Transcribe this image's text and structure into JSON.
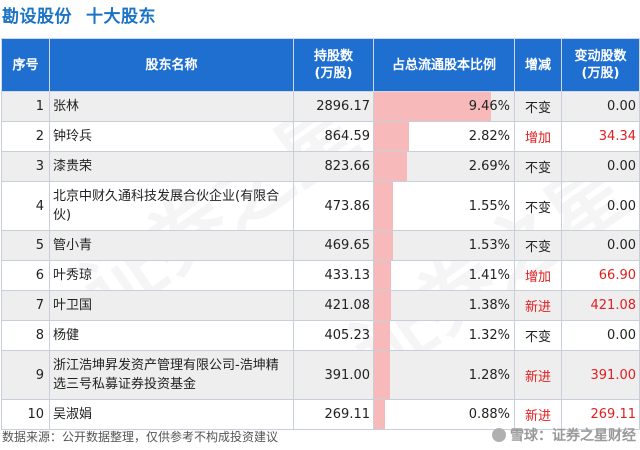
{
  "header": {
    "company": "勘设股份",
    "subtitle": "十大股东"
  },
  "table": {
    "columns": [
      "序号",
      "股东名称",
      "持股数\n(万股)",
      "占总流通股本比例",
      "增减",
      "变动股数\n(万股)"
    ],
    "rows": [
      {
        "idx": "1",
        "name": "张林",
        "shares": "2896.17",
        "pct": "9.46%",
        "ratio": 9.46,
        "change": "不变",
        "delta": "0.00",
        "up": false
      },
      {
        "idx": "2",
        "name": "钟玲兵",
        "shares": "864.59",
        "pct": "2.82%",
        "ratio": 2.82,
        "change": "增加",
        "delta": "34.34",
        "up": true
      },
      {
        "idx": "3",
        "name": "漆贵荣",
        "shares": "823.66",
        "pct": "2.69%",
        "ratio": 2.69,
        "change": "不变",
        "delta": "0.00",
        "up": false
      },
      {
        "idx": "4",
        "name": "北京中财久通科技发展合伙企业(有限合伙)",
        "shares": "473.86",
        "pct": "1.55%",
        "ratio": 1.55,
        "change": "不变",
        "delta": "0.00",
        "up": false
      },
      {
        "idx": "5",
        "name": "管小青",
        "shares": "469.65",
        "pct": "1.53%",
        "ratio": 1.53,
        "change": "不变",
        "delta": "0.00",
        "up": false
      },
      {
        "idx": "6",
        "name": "叶秀琼",
        "shares": "433.13",
        "pct": "1.41%",
        "ratio": 1.41,
        "change": "增加",
        "delta": "66.90",
        "up": true
      },
      {
        "idx": "7",
        "name": "叶卫国",
        "shares": "421.08",
        "pct": "1.38%",
        "ratio": 1.38,
        "change": "新进",
        "delta": "421.08",
        "up": true
      },
      {
        "idx": "8",
        "name": "杨健",
        "shares": "405.23",
        "pct": "1.32%",
        "ratio": 1.32,
        "change": "不变",
        "delta": "0.00",
        "up": false
      },
      {
        "idx": "9",
        "name": "浙江浩坤昇发资产管理有限公司-浩坤精选三号私募证券投资基金",
        "shares": "391.00",
        "pct": "1.28%",
        "ratio": 1.28,
        "change": "新进",
        "delta": "391.00",
        "up": true
      },
      {
        "idx": "10",
        "name": "吴淑娟",
        "shares": "269.11",
        "pct": "0.88%",
        "ratio": 0.88,
        "change": "新进",
        "delta": "269.11",
        "up": true
      }
    ]
  },
  "footer": {
    "source": "数据来源：公开数据整理，仅供参考不构成投资建议",
    "brand": "雪球：证券之星财经"
  },
  "watermark": [
    "证券之星",
    "证券之星"
  ],
  "colors": {
    "header_bg": "#1f6fd0",
    "bar": "#f7b9b9",
    "increase": "#e02020",
    "title": "#1a73c4"
  }
}
